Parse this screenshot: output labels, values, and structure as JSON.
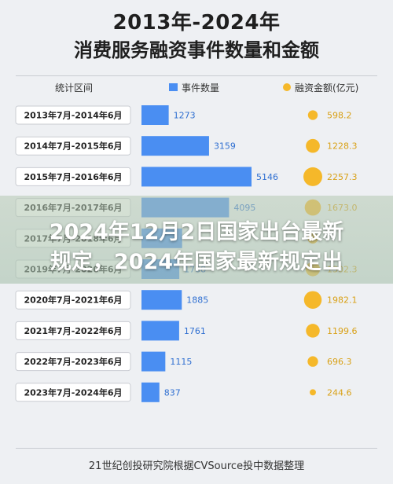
{
  "header": {
    "title_line1": "2013年-2024年",
    "title_line2": "消费服务融资事件数量和金额"
  },
  "columns": {
    "period": "统计区间",
    "count": "事件数量",
    "amount": "融资金额(亿元)"
  },
  "colors": {
    "count_bar": "#4a8ef2",
    "amount_bubble": "#f5b82a"
  },
  "headline": {
    "line1": "2024年12月2日国家出台最新",
    "line2": "规定，2024年国家最新规定出"
  },
  "source": "21世纪创投研究院根据CVSource投中数据整理",
  "chart_data": {
    "type": "bar",
    "categories": [
      "2013年7月-2014年6月",
      "2014年7月-2015年6月",
      "2015年7月-2016年6月",
      "2016年7月-2017年6月",
      "2017年7月-2018年6月",
      "2019年7月-2020年6月",
      "2020年7月-2021年6月",
      "2021年7月-2022年6月",
      "2022年7月-2023年6月",
      "2023年7月-2024年6月"
    ],
    "series": [
      {
        "name": "事件数量",
        "values": [
          1273,
          3159,
          5146,
          4095,
          1900,
          1768,
          1885,
          1761,
          1115,
          837
        ]
      },
      {
        "name": "融资金额(亿元)",
        "values": [
          598.2,
          1228.3,
          2257.3,
          1673.0,
          700.0,
          1302.3,
          1982.1,
          1199.6,
          696.3,
          244.6
        ]
      }
    ],
    "value_labels": {
      "count": [
        "1273",
        "3159",
        "5146",
        "4095",
        "",
        "1768",
        "1885",
        "1761",
        "1115",
        "837"
      ],
      "amount": [
        "598.2",
        "1228.3",
        "2257.3",
        "1673.0",
        "",
        "1302.3",
        "1982.1",
        "1199.6",
        "696.3",
        "244.6"
      ]
    },
    "legend": "top"
  }
}
